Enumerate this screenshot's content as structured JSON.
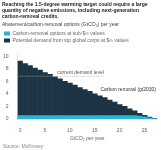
{
  "chart_data": {
    "type": "bar",
    "title": "Reaching the 1.5-degree warming target could require a large quantity of negative emissions, including next-generation carbon-removal credits.",
    "subtitle": "Abatement/carbon-removal options (GtCO₂) per year",
    "x_label": "GtCO₂ per year",
    "footnote": "Source: McKinsey",
    "categories": [
      "0",
      null,
      null,
      null,
      null,
      "5",
      null,
      null,
      null,
      null,
      "10",
      null,
      null,
      null,
      null,
      "15",
      null,
      null,
      null,
      null,
      "20",
      null,
      null,
      null,
      null,
      "25",
      null,
      null
    ],
    "series": [
      {
        "name": "Potential demand from top global corps at $∞ values",
        "color": "#1c3444",
        "values": [
          9.2,
          8.8,
          8.5,
          8.1,
          7.8,
          7.4,
          7.1,
          6.7,
          6.4,
          6.0,
          5.7,
          5.4,
          5.0,
          4.7,
          4.4,
          4.0,
          3.7,
          3.4,
          3.0,
          2.7,
          2.3,
          2.0,
          1.6,
          1.3,
          0.9,
          0.6,
          0.3,
          0.1
        ]
      },
      {
        "name": "Carbon-removal options at sub-$∞ values",
        "color": "#29b5d4",
        "values": [
          0.55,
          0.55,
          0.55,
          0.55,
          0.55,
          0.55,
          0.55,
          0.55,
          0.55,
          0.55,
          0.55,
          0.55,
          0.55,
          0.55,
          0.55,
          0.55,
          0.55,
          0.55,
          0.55,
          0.55,
          0.55,
          0.55,
          0.55,
          0.55,
          0.45,
          0.35,
          0.2,
          0.08
        ]
      }
    ],
    "stacked": false,
    "ylim": [
      0,
      10.5
    ],
    "yticks": [
      0,
      2,
      4,
      6,
      8,
      10
    ],
    "grid": false,
    "legend": "top",
    "annotations": [
      {
        "text": "current demand level",
        "y": 6.8,
        "line_style": "dotted",
        "color": "#aaaaaa"
      },
      {
        "text": "Carbon removal (gt2030)"
      }
    ]
  }
}
